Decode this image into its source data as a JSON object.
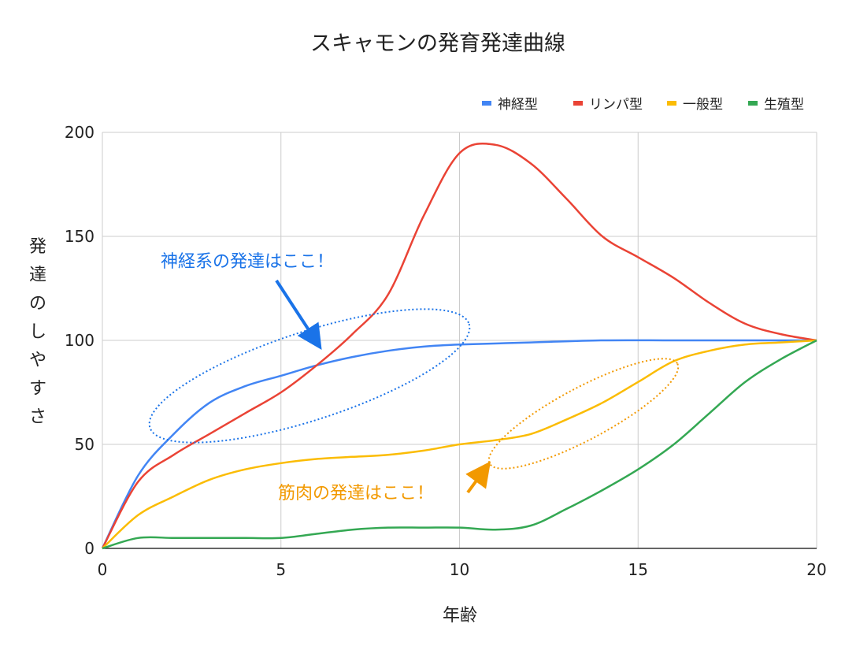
{
  "chart_data": {
    "type": "line",
    "title": "スキャモンの発育発達曲線",
    "xlabel": "年齢",
    "ylabel": "発達のしやすさ",
    "xlim": [
      0,
      20
    ],
    "ylim": [
      0,
      200
    ],
    "x_ticks": [
      "0",
      "5",
      "10",
      "15",
      "20"
    ],
    "y_ticks": [
      "0",
      "50",
      "100",
      "150",
      "200"
    ],
    "grid": true,
    "legend_position": "top-right",
    "series": [
      {
        "name": "神経型",
        "color": "#4285F4",
        "points": [
          [
            0,
            0
          ],
          [
            1,
            35
          ],
          [
            2,
            55
          ],
          [
            3,
            70
          ],
          [
            4,
            78
          ],
          [
            5,
            83
          ],
          [
            6,
            88
          ],
          [
            7,
            92
          ],
          [
            8,
            95
          ],
          [
            9,
            97
          ],
          [
            10,
            98
          ],
          [
            12,
            99
          ],
          [
            14,
            100
          ],
          [
            16,
            100
          ],
          [
            18,
            100
          ],
          [
            20,
            100
          ]
        ]
      },
      {
        "name": "リンパ型",
        "color": "#EA4335",
        "points": [
          [
            0,
            0
          ],
          [
            1,
            32
          ],
          [
            2,
            45
          ],
          [
            3,
            55
          ],
          [
            4,
            65
          ],
          [
            5,
            75
          ],
          [
            6,
            88
          ],
          [
            7,
            103
          ],
          [
            8,
            122
          ],
          [
            9,
            160
          ],
          [
            10,
            190
          ],
          [
            11,
            194
          ],
          [
            12,
            185
          ],
          [
            13,
            168
          ],
          [
            14,
            150
          ],
          [
            15,
            140
          ],
          [
            16,
            130
          ],
          [
            17,
            118
          ],
          [
            18,
            108
          ],
          [
            19,
            103
          ],
          [
            20,
            100
          ]
        ]
      },
      {
        "name": "一般型",
        "color": "#FBBC04",
        "points": [
          [
            0,
            0
          ],
          [
            1,
            16
          ],
          [
            2,
            25
          ],
          [
            3,
            33
          ],
          [
            4,
            38
          ],
          [
            5,
            41
          ],
          [
            6,
            43
          ],
          [
            7,
            44
          ],
          [
            8,
            45
          ],
          [
            9,
            47
          ],
          [
            10,
            50
          ],
          [
            11,
            52
          ],
          [
            12,
            55
          ],
          [
            13,
            62
          ],
          [
            14,
            70
          ],
          [
            15,
            80
          ],
          [
            16,
            90
          ],
          [
            17,
            95
          ],
          [
            18,
            98
          ],
          [
            19,
            99
          ],
          [
            20,
            100
          ]
        ]
      },
      {
        "name": "生殖型",
        "color": "#34A853",
        "points": [
          [
            0,
            0
          ],
          [
            1,
            5
          ],
          [
            2,
            5
          ],
          [
            3,
            5
          ],
          [
            4,
            5
          ],
          [
            5,
            5
          ],
          [
            6,
            7
          ],
          [
            7,
            9
          ],
          [
            8,
            10
          ],
          [
            9,
            10
          ],
          [
            10,
            10
          ],
          [
            11,
            9
          ],
          [
            12,
            11
          ],
          [
            13,
            19
          ],
          [
            14,
            28
          ],
          [
            15,
            38
          ],
          [
            16,
            50
          ],
          [
            17,
            65
          ],
          [
            18,
            80
          ],
          [
            19,
            91
          ],
          [
            20,
            100
          ]
        ]
      }
    ],
    "annotations": [
      {
        "text": "神経系の発達はここ！",
        "color": "#1A73E8"
      },
      {
        "text": "筋肉の発達はここ！",
        "color": "#F29900"
      }
    ]
  }
}
